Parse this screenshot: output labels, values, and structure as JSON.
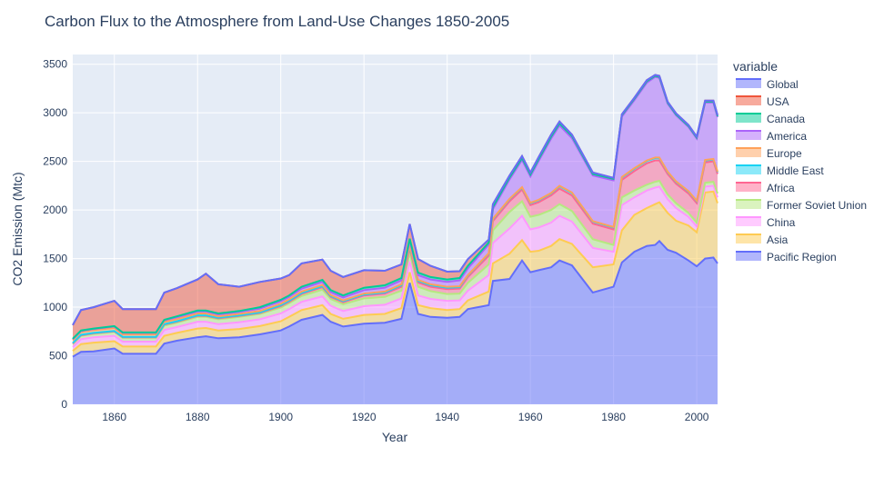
{
  "chart_data": {
    "type": "area",
    "title": "Carbon Flux to the Atmosphere from Land-Use Changes 1850-2005",
    "xlabel": "Year",
    "ylabel": "CO2 Emission (Mtc)",
    "xlim": [
      1850,
      2005
    ],
    "ylim": [
      0,
      3600
    ],
    "x_ticks": [
      1860,
      1880,
      1900,
      1920,
      1940,
      1960,
      1980,
      2000
    ],
    "y_ticks": [
      0,
      500,
      1000,
      1500,
      2000,
      2500,
      3000,
      3500
    ],
    "grid": true,
    "legend_title": "variable",
    "legend_position": "right",
    "x": [
      1850,
      1852,
      1855,
      1860,
      1862,
      1865,
      1870,
      1872,
      1875,
      1880,
      1882,
      1885,
      1890,
      1895,
      1900,
      1902,
      1905,
      1910,
      1912,
      1915,
      1920,
      1925,
      1929,
      1931,
      1933,
      1936,
      1940,
      1943,
      1945,
      1950,
      1951,
      1955,
      1958,
      1960,
      1962,
      1965,
      1967,
      1970,
      1975,
      1980,
      1982,
      1985,
      1988,
      1990,
      1991,
      1993,
      1995,
      1998,
      2000,
      2002,
      2004,
      2005
    ],
    "series": [
      {
        "name": "Pacific Region",
        "color": "#636efa",
        "values": [
          490,
          540,
          545,
          575,
          520,
          520,
          520,
          625,
          655,
          690,
          700,
          680,
          690,
          720,
          760,
          800,
          870,
          920,
          850,
          800,
          830,
          840,
          880,
          1250,
          930,
          900,
          890,
          900,
          980,
          1020,
          1270,
          1290,
          1480,
          1360,
          1380,
          1410,
          1480,
          1430,
          1150,
          1210,
          1460,
          1570,
          1630,
          1640,
          1680,
          1590,
          1560,
          1480,
          1420,
          1500,
          1510,
          1450
        ]
      },
      {
        "name": "Asia",
        "color": "#FECB52",
        "values": [
          60,
          80,
          90,
          75,
          75,
          75,
          75,
          80,
          80,
          90,
          85,
          80,
          85,
          85,
          95,
          100,
          100,
          100,
          80,
          80,
          90,
          90,
          110,
          110,
          90,
          90,
          80,
          80,
          90,
          140,
          180,
          260,
          210,
          210,
          200,
          220,
          220,
          220,
          260,
          230,
          330,
          380,
          390,
          420,
          400,
          380,
          330,
          360,
          350,
          680,
          680,
          620
        ]
      },
      {
        "name": "China",
        "color": "#FF97FF",
        "values": [
          40,
          50,
          55,
          55,
          50,
          50,
          50,
          60,
          60,
          70,
          65,
          65,
          70,
          70,
          80,
          80,
          85,
          90,
          85,
          80,
          90,
          95,
          100,
          110,
          100,
          95,
          95,
          90,
          100,
          170,
          210,
          260,
          250,
          230,
          240,
          240,
          240,
          230,
          200,
          130,
          260,
          180,
          180,
          170,
          160,
          140,
          130,
          90,
          60,
          60,
          60,
          60
        ]
      },
      {
        "name": "Former Soviet Union",
        "color": "#B6E880",
        "values": [
          30,
          35,
          35,
          40,
          40,
          40,
          40,
          45,
          45,
          50,
          50,
          50,
          55,
          55,
          60,
          60,
          60,
          70,
          70,
          70,
          80,
          80,
          80,
          90,
          90,
          80,
          70,
          70,
          80,
          110,
          130,
          170,
          150,
          130,
          130,
          130,
          120,
          110,
          90,
          70,
          80,
          70,
          60,
          60,
          60,
          50,
          50,
          40,
          40,
          40,
          40,
          40
        ]
      },
      {
        "name": "Africa",
        "color": "#FF6692",
        "values": [
          5,
          5,
          5,
          5,
          5,
          5,
          5,
          10,
          10,
          10,
          10,
          10,
          10,
          10,
          15,
          15,
          20,
          25,
          20,
          20,
          30,
          35,
          40,
          45,
          45,
          45,
          50,
          50,
          60,
          90,
          95,
          110,
          120,
          120,
          130,
          150,
          160,
          160,
          160,
          160,
          180,
          200,
          220,
          220,
          210,
          210,
          200,
          200,
          200,
          210,
          210,
          200
        ]
      },
      {
        "name": "Middle East",
        "color": "#19d3f3",
        "values": [
          5,
          5,
          5,
          5,
          5,
          5,
          5,
          5,
          5,
          5,
          5,
          5,
          5,
          5,
          10,
          10,
          10,
          10,
          10,
          10,
          10,
          10,
          15,
          15,
          15,
          15,
          15,
          15,
          15,
          20,
          20,
          20,
          20,
          20,
          20,
          20,
          25,
          25,
          20,
          20,
          25,
          25,
          25,
          25,
          25,
          20,
          20,
          20,
          20,
          20,
          20,
          20
        ]
      },
      {
        "name": "Europe",
        "color": "#FFA15A",
        "values": [
          30,
          30,
          30,
          30,
          25,
          25,
          25,
          25,
          20,
          20,
          20,
          15,
          15,
          15,
          15,
          15,
          15,
          15,
          10,
          10,
          10,
          10,
          10,
          10,
          10,
          10,
          10,
          10,
          5,
          5,
          5,
          5,
          5,
          5,
          5,
          5,
          5,
          5,
          5,
          5,
          5,
          5,
          5,
          5,
          5,
          5,
          5,
          5,
          5,
          5,
          5,
          5
        ]
      },
      {
        "name": "America",
        "color": "#ab63fa",
        "values": [
          10,
          10,
          10,
          15,
          15,
          15,
          15,
          15,
          20,
          20,
          20,
          20,
          20,
          25,
          25,
          25,
          30,
          30,
          30,
          30,
          35,
          40,
          40,
          50,
          50,
          50,
          50,
          60,
          70,
          90,
          100,
          200,
          280,
          270,
          400,
          560,
          620,
          560,
          470,
          480,
          620,
          700,
          800,
          830,
          820,
          700,
          680,
          660,
          640,
          590,
          580,
          560
        ]
      },
      {
        "name": "Canada",
        "color": "#00cc96",
        "values": [
          5,
          5,
          5,
          5,
          5,
          5,
          5,
          5,
          10,
          10,
          10,
          10,
          10,
          15,
          15,
          15,
          20,
          20,
          20,
          20,
          25,
          25,
          25,
          25,
          25,
          25,
          25,
          25,
          25,
          20,
          20,
          20,
          20,
          20,
          20,
          20,
          20,
          20,
          15,
          15,
          15,
          15,
          15,
          10,
          10,
          10,
          10,
          10,
          10,
          10,
          10,
          10
        ]
      },
      {
        "name": "USA",
        "color": "#EF553B",
        "values": [
          140,
          210,
          220,
          260,
          240,
          240,
          240,
          280,
          290,
          320,
          380,
          300,
          250,
          260,
          220,
          210,
          240,
          210,
          200,
          190,
          180,
          150,
          140,
          150,
          140,
          115,
          80,
          70,
          70,
          30,
          30,
          20,
          20,
          20,
          20,
          20,
          20,
          15,
          15,
          10,
          10,
          10,
          10,
          10,
          10,
          10,
          10,
          10,
          10,
          10,
          10,
          10
        ]
      }
    ]
  }
}
